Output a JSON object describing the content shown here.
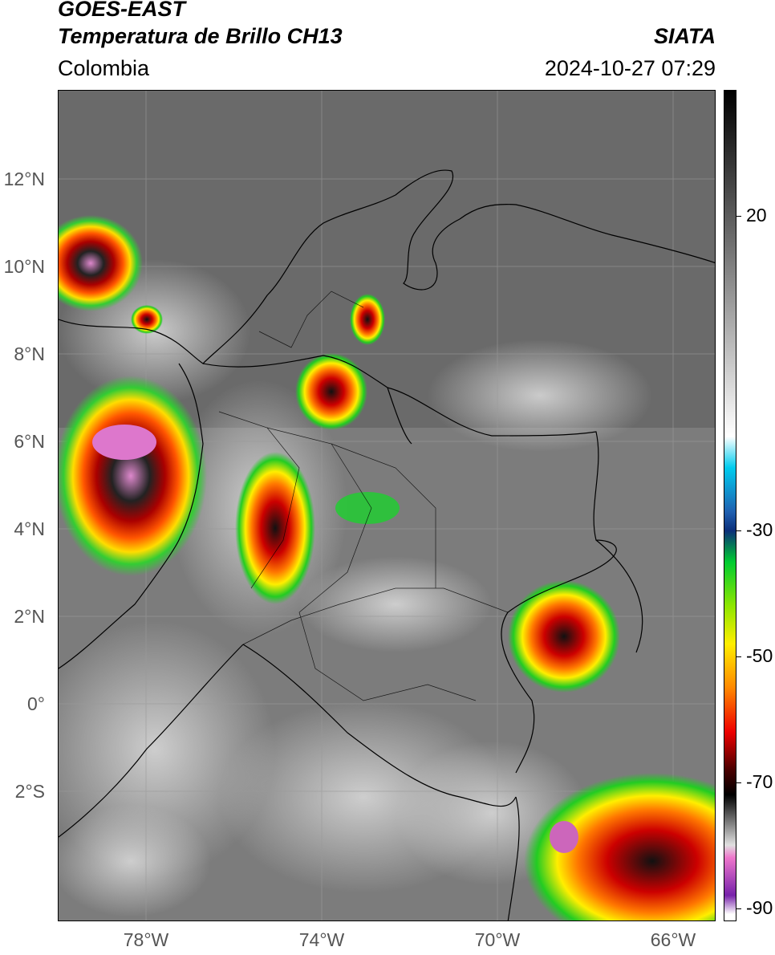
{
  "header": {
    "satellite": "GOES-EAST",
    "product": "Temperatura de Brillo CH13",
    "region": "Colombia",
    "source": "SIATA",
    "datetime": "2024-10-27 07:29"
  },
  "map": {
    "lat_labels": [
      "12°N",
      "10°N",
      "8°N",
      "6°N",
      "4°N",
      "2°N",
      "0°",
      "2°S"
    ],
    "lon_labels": [
      "78°W",
      "74°W",
      "70°W",
      "66°W"
    ],
    "extent": {
      "lon_min": -80.0,
      "lon_max": -65.0,
      "lat_min": -5.0,
      "lat_max": 14.0
    }
  },
  "colorbar": {
    "labels": [
      "20",
      "-30",
      "-50",
      "-70",
      "-90"
    ],
    "values": [
      20,
      -30,
      -50,
      -70,
      -90
    ],
    "range": [
      -92,
      40
    ],
    "stops": [
      {
        "v": 40,
        "c": "#000000"
      },
      {
        "v": 10,
        "c": "#8a8a8a"
      },
      {
        "v": -15,
        "c": "#ffffff"
      },
      {
        "v": -20,
        "c": "#00ccee"
      },
      {
        "v": -27,
        "c": "#1f5fb0"
      },
      {
        "v": -30,
        "c": "#0b2f7a"
      },
      {
        "v": -35,
        "c": "#00cc30"
      },
      {
        "v": -42,
        "c": "#8fe600"
      },
      {
        "v": -48,
        "c": "#ffee00"
      },
      {
        "v": -55,
        "c": "#ff8800"
      },
      {
        "v": -62,
        "c": "#ee0000"
      },
      {
        "v": -68,
        "c": "#4a0000"
      },
      {
        "v": -72,
        "c": "#000000"
      },
      {
        "v": -80,
        "c": "#e0e0e0"
      },
      {
        "v": -82,
        "c": "#ee77cc"
      },
      {
        "v": -88,
        "c": "#7722aa"
      },
      {
        "v": -91,
        "c": "#ffffff"
      }
    ]
  }
}
